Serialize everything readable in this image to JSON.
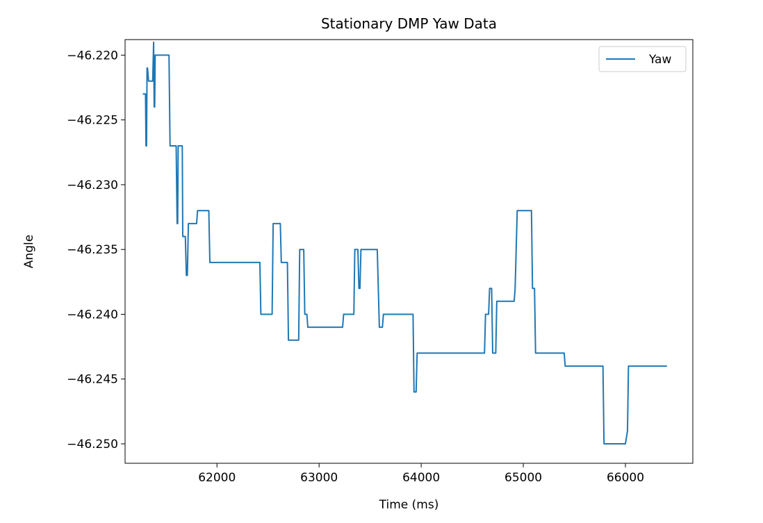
{
  "chart_data": {
    "type": "line",
    "title": "Stationary DMP Yaw Data",
    "xlabel": "Time (ms)",
    "ylabel": "Angle",
    "xlim": [
      61100,
      66660
    ],
    "ylim": [
      -46.2515,
      -46.2188
    ],
    "xticks": [
      62000,
      63000,
      64000,
      65000,
      66000
    ],
    "xtick_labels": [
      "62000",
      "63000",
      "64000",
      "65000",
      "66000"
    ],
    "yticks": [
      -46.22,
      -46.225,
      -46.23,
      -46.235,
      -46.24,
      -46.245,
      -46.25
    ],
    "ytick_labels": [
      "−46.220",
      "−46.225",
      "−46.230",
      "−46.235",
      "−46.240",
      "−46.245",
      "−46.250"
    ],
    "legend": {
      "position": "top-right",
      "entries": [
        "Yaw"
      ]
    },
    "grid": false,
    "series": [
      {
        "name": "Yaw",
        "color": "#1f77b4",
        "x": [
          61280,
          61300,
          61305,
          61310,
          61315,
          61320,
          61330,
          61340,
          61345,
          61360,
          61370,
          61380,
          61385,
          61390,
          61395,
          61400,
          61410,
          61420,
          61530,
          61540,
          61600,
          61610,
          61615,
          61620,
          61630,
          61660,
          61665,
          61670,
          61690,
          61700,
          61705,
          61710,
          61720,
          61730,
          61800,
          61810,
          61850,
          61860,
          61920,
          61930,
          62420,
          62430,
          62540,
          62550,
          62620,
          62630,
          62660,
          62670,
          62690,
          62700,
          62800,
          62810,
          62850,
          62860,
          62880,
          62890,
          62900,
          62910,
          63230,
          63240,
          63340,
          63350,
          63380,
          63390,
          63400,
          63410,
          63430,
          63440,
          63570,
          63580,
          63590,
          63600,
          63620,
          63630,
          63650,
          63660,
          63920,
          63930,
          63950,
          63960,
          64620,
          64630,
          64660,
          64670,
          64690,
          64700,
          64730,
          64740,
          64760,
          64770,
          64910,
          64920,
          64940,
          64950,
          65080,
          65090,
          65110,
          65120,
          65400,
          65410,
          65780,
          65790,
          65990,
          66000,
          66020,
          66030,
          66400
        ],
        "y": [
          -46.223,
          -46.223,
          -46.227,
          -46.227,
          -46.221,
          -46.221,
          -46.222,
          -46.222,
          -46.222,
          -46.222,
          -46.222,
          -46.219,
          -46.224,
          -46.224,
          -46.22,
          -46.22,
          -46.22,
          -46.22,
          -46.22,
          -46.227,
          -46.227,
          -46.233,
          -46.233,
          -46.227,
          -46.227,
          -46.227,
          -46.234,
          -46.234,
          -46.234,
          -46.237,
          -46.237,
          -46.237,
          -46.233,
          -46.233,
          -46.233,
          -46.232,
          -46.232,
          -46.232,
          -46.232,
          -46.236,
          -46.236,
          -46.24,
          -46.24,
          -46.233,
          -46.233,
          -46.236,
          -46.236,
          -46.236,
          -46.236,
          -46.242,
          -46.242,
          -46.235,
          -46.235,
          -46.24,
          -46.24,
          -46.241,
          -46.241,
          -46.241,
          -46.241,
          -46.24,
          -46.24,
          -46.235,
          -46.235,
          -46.238,
          -46.238,
          -46.235,
          -46.235,
          -46.235,
          -46.235,
          -46.238,
          -46.241,
          -46.241,
          -46.241,
          -46.24,
          -46.24,
          -46.24,
          -46.24,
          -46.246,
          -46.246,
          -46.243,
          -46.243,
          -46.24,
          -46.24,
          -46.238,
          -46.238,
          -46.243,
          -46.243,
          -46.239,
          -46.239,
          -46.239,
          -46.239,
          -46.238,
          -46.232,
          -46.232,
          -46.232,
          -46.238,
          -46.238,
          -46.243,
          -46.243,
          -46.244,
          -46.244,
          -46.25,
          -46.25,
          -46.25,
          -46.249,
          -46.244,
          -46.244
        ]
      }
    ]
  }
}
